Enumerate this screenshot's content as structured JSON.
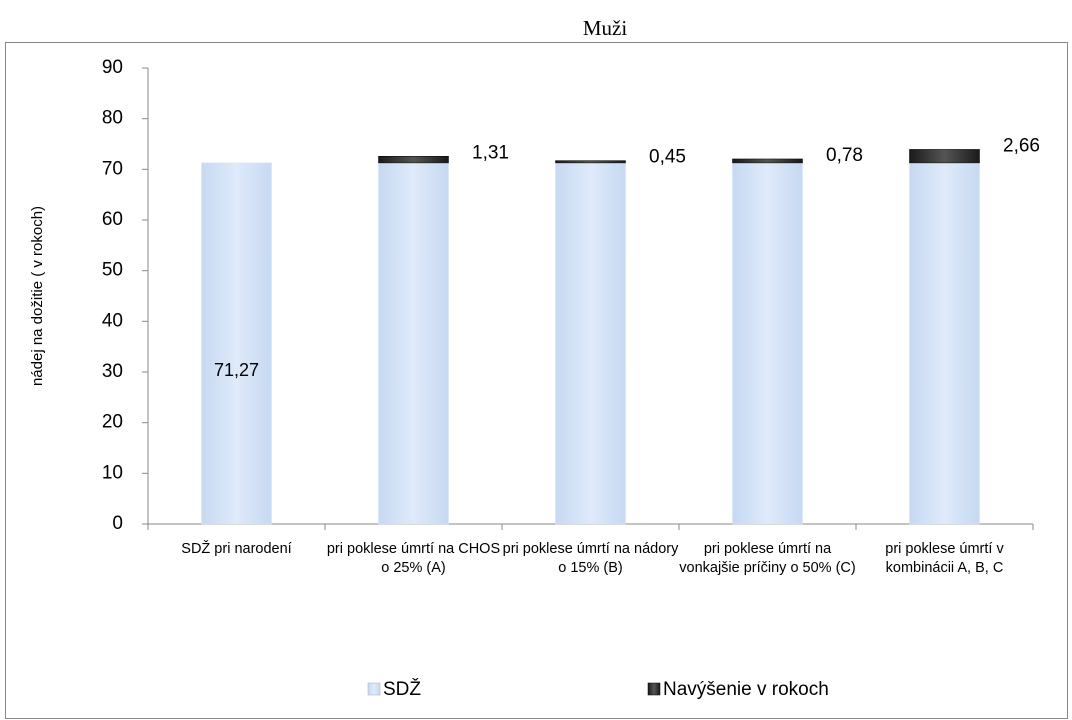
{
  "chart_data": {
    "type": "stacked-bar",
    "title": "Muži",
    "y_label": "nádej na dožitie ( v rokoch)",
    "categories": [
      "SDŽ pri narodení",
      "pri poklese úmrtí na CHOS o 25% (A)",
      "pri poklese úmrtí na nádory o 15% (B)",
      "pri poklese úmrtí na vonkajšie príčiny o 50% (C)",
      "pri poklese  úmrtí v kombinácii A, B, C"
    ],
    "series": [
      {
        "name": "SDŽ",
        "color": "#c6d9f1",
        "values": [
          71.27,
          71.27,
          71.27,
          71.27,
          71.27
        ],
        "value_labels": [
          "71,27",
          null,
          null,
          null,
          null
        ]
      },
      {
        "name": "Navýšenie  v rokoch",
        "color": "#1a1a1a",
        "values": [
          null,
          1.31,
          0.45,
          0.78,
          2.66
        ],
        "value_labels": [
          null,
          "1,31",
          "0,45",
          "0,78",
          "2,66"
        ]
      }
    ],
    "ylim": [
      0,
      90
    ],
    "yticks": [
      0,
      10,
      20,
      30,
      40,
      50,
      60,
      70,
      80,
      90
    ],
    "legend": "bottom"
  }
}
